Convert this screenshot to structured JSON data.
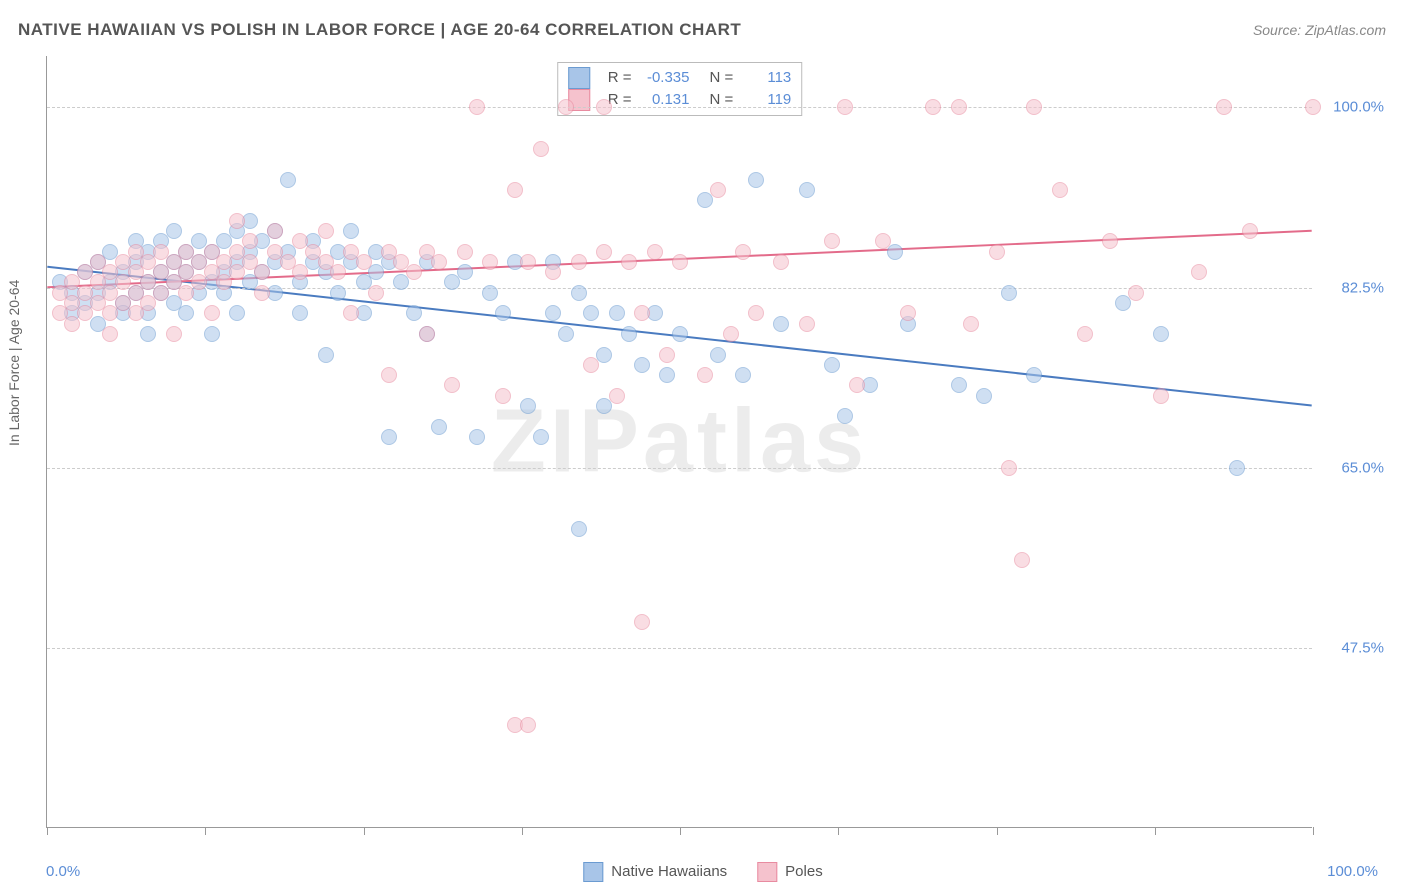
{
  "title": "NATIVE HAWAIIAN VS POLISH IN LABOR FORCE | AGE 20-64 CORRELATION CHART",
  "source": {
    "label": "Source:",
    "value": "ZipAtlas.com"
  },
  "ylabel": "In Labor Force | Age 20-64",
  "watermark": "ZIPatlas",
  "chart": {
    "type": "scatter",
    "background_color": "#ffffff",
    "grid_color": "#cccccc",
    "axis_color": "#999999",
    "label_color": "#666666",
    "tick_label_color": "#5b8dd6",
    "title_fontsize": 17,
    "label_fontsize": 14,
    "tick_fontsize": 15,
    "point_radius": 8,
    "point_opacity": 0.55,
    "line_width": 2,
    "xlim": [
      0,
      100
    ],
    "ylim": [
      30,
      105
    ],
    "y_ticks": [
      {
        "value": 47.5,
        "label": "47.5%"
      },
      {
        "value": 65.0,
        "label": "65.0%"
      },
      {
        "value": 82.5,
        "label": "82.5%"
      },
      {
        "value": 100.0,
        "label": "100.0%"
      }
    ],
    "x_tick_positions": [
      0,
      12.5,
      25,
      37.5,
      50,
      62.5,
      75,
      87.5,
      100
    ],
    "x_left_label": "0.0%",
    "x_right_label": "100.0%"
  },
  "series": [
    {
      "name": "Native Hawaiians",
      "fill_color": "#a8c5e8",
      "border_color": "#6b9bd1",
      "line_color": "#4a7bc0",
      "R": "-0.335",
      "N": "113",
      "trend": {
        "x1": 0,
        "y1": 84.5,
        "x2": 100,
        "y2": 71.0
      },
      "points": [
        [
          1,
          83
        ],
        [
          2,
          82
        ],
        [
          2,
          80
        ],
        [
          3,
          84
        ],
        [
          3,
          81
        ],
        [
          4,
          82
        ],
        [
          4,
          85
        ],
        [
          4,
          79
        ],
        [
          5,
          83
        ],
        [
          5,
          86
        ],
        [
          6,
          81
        ],
        [
          6,
          84
        ],
        [
          6,
          80
        ],
        [
          7,
          85
        ],
        [
          7,
          82
        ],
        [
          7,
          87
        ],
        [
          8,
          83
        ],
        [
          8,
          86
        ],
        [
          8,
          80
        ],
        [
          8,
          78
        ],
        [
          9,
          84
        ],
        [
          9,
          82
        ],
        [
          9,
          87
        ],
        [
          10,
          85
        ],
        [
          10,
          83
        ],
        [
          10,
          81
        ],
        [
          10,
          88
        ],
        [
          11,
          84
        ],
        [
          11,
          86
        ],
        [
          11,
          80
        ],
        [
          12,
          85
        ],
        [
          12,
          82
        ],
        [
          12,
          87
        ],
        [
          13,
          83
        ],
        [
          13,
          86
        ],
        [
          13,
          78
        ],
        [
          14,
          84
        ],
        [
          14,
          87
        ],
        [
          14,
          82
        ],
        [
          15,
          85
        ],
        [
          15,
          88
        ],
        [
          15,
          80
        ],
        [
          16,
          86
        ],
        [
          16,
          83
        ],
        [
          16,
          89
        ],
        [
          17,
          84
        ],
        [
          17,
          87
        ],
        [
          18,
          85
        ],
        [
          18,
          82
        ],
        [
          18,
          88
        ],
        [
          19,
          93
        ],
        [
          19,
          86
        ],
        [
          20,
          83
        ],
        [
          20,
          80
        ],
        [
          21,
          85
        ],
        [
          21,
          87
        ],
        [
          22,
          84
        ],
        [
          22,
          76
        ],
        [
          23,
          86
        ],
        [
          23,
          82
        ],
        [
          24,
          85
        ],
        [
          24,
          88
        ],
        [
          25,
          83
        ],
        [
          25,
          80
        ],
        [
          26,
          86
        ],
        [
          26,
          84
        ],
        [
          27,
          85
        ],
        [
          27,
          68
        ],
        [
          28,
          83
        ],
        [
          29,
          80
        ],
        [
          30,
          85
        ],
        [
          30,
          78
        ],
        [
          31,
          69
        ],
        [
          32,
          83
        ],
        [
          33,
          84
        ],
        [
          34,
          68
        ],
        [
          35,
          82
        ],
        [
          36,
          80
        ],
        [
          37,
          85
        ],
        [
          38,
          71
        ],
        [
          39,
          68
        ],
        [
          40,
          85
        ],
        [
          40,
          80
        ],
        [
          41,
          78
        ],
        [
          42,
          82
        ],
        [
          42,
          59
        ],
        [
          43,
          80
        ],
        [
          44,
          76
        ],
        [
          44,
          71
        ],
        [
          45,
          80
        ],
        [
          46,
          78
        ],
        [
          47,
          75
        ],
        [
          48,
          80
        ],
        [
          49,
          74
        ],
        [
          50,
          78
        ],
        [
          52,
          91
        ],
        [
          53,
          76
        ],
        [
          55,
          74
        ],
        [
          56,
          93
        ],
        [
          58,
          79
        ],
        [
          60,
          92
        ],
        [
          62,
          75
        ],
        [
          63,
          70
        ],
        [
          65,
          73
        ],
        [
          67,
          86
        ],
        [
          68,
          79
        ],
        [
          72,
          73
        ],
        [
          74,
          72
        ],
        [
          76,
          82
        ],
        [
          78,
          74
        ],
        [
          85,
          81
        ],
        [
          88,
          78
        ],
        [
          94,
          65
        ]
      ]
    },
    {
      "name": "Poles",
      "fill_color": "#f5c2cd",
      "border_color": "#e88ba0",
      "line_color": "#e36b8a",
      "R": "0.131",
      "N": "119",
      "trend": {
        "x1": 0,
        "y1": 82.5,
        "x2": 100,
        "y2": 88.0
      },
      "points": [
        [
          1,
          82
        ],
        [
          1,
          80
        ],
        [
          2,
          81
        ],
        [
          2,
          83
        ],
        [
          2,
          79
        ],
        [
          3,
          82
        ],
        [
          3,
          84
        ],
        [
          3,
          80
        ],
        [
          4,
          83
        ],
        [
          4,
          81
        ],
        [
          4,
          85
        ],
        [
          5,
          82
        ],
        [
          5,
          84
        ],
        [
          5,
          80
        ],
        [
          5,
          78
        ],
        [
          6,
          83
        ],
        [
          6,
          85
        ],
        [
          6,
          81
        ],
        [
          7,
          84
        ],
        [
          7,
          82
        ],
        [
          7,
          86
        ],
        [
          7,
          80
        ],
        [
          8,
          83
        ],
        [
          8,
          85
        ],
        [
          8,
          81
        ],
        [
          9,
          84
        ],
        [
          9,
          82
        ],
        [
          9,
          86
        ],
        [
          10,
          83
        ],
        [
          10,
          85
        ],
        [
          10,
          78
        ],
        [
          11,
          84
        ],
        [
          11,
          82
        ],
        [
          11,
          86
        ],
        [
          12,
          85
        ],
        [
          12,
          83
        ],
        [
          13,
          84
        ],
        [
          13,
          86
        ],
        [
          13,
          80
        ],
        [
          14,
          85
        ],
        [
          14,
          83
        ],
        [
          15,
          86
        ],
        [
          15,
          84
        ],
        [
          15,
          89
        ],
        [
          16,
          85
        ],
        [
          16,
          87
        ],
        [
          17,
          84
        ],
        [
          17,
          82
        ],
        [
          18,
          86
        ],
        [
          18,
          88
        ],
        [
          19,
          85
        ],
        [
          20,
          87
        ],
        [
          20,
          84
        ],
        [
          21,
          86
        ],
        [
          22,
          85
        ],
        [
          22,
          88
        ],
        [
          23,
          84
        ],
        [
          24,
          86
        ],
        [
          24,
          80
        ],
        [
          25,
          85
        ],
        [
          26,
          82
        ],
        [
          27,
          86
        ],
        [
          27,
          74
        ],
        [
          28,
          85
        ],
        [
          29,
          84
        ],
        [
          30,
          86
        ],
        [
          30,
          78
        ],
        [
          31,
          85
        ],
        [
          32,
          73
        ],
        [
          33,
          86
        ],
        [
          34,
          100
        ],
        [
          35,
          85
        ],
        [
          36,
          72
        ],
        [
          37,
          92
        ],
        [
          37,
          40
        ],
        [
          38,
          85
        ],
        [
          38,
          40
        ],
        [
          39,
          96
        ],
        [
          40,
          84
        ],
        [
          41,
          100
        ],
        [
          42,
          85
        ],
        [
          43,
          75
        ],
        [
          44,
          86
        ],
        [
          44,
          100
        ],
        [
          45,
          72
        ],
        [
          46,
          85
        ],
        [
          47,
          80
        ],
        [
          47,
          50
        ],
        [
          48,
          86
        ],
        [
          49,
          76
        ],
        [
          50,
          85
        ],
        [
          52,
          74
        ],
        [
          53,
          92
        ],
        [
          54,
          78
        ],
        [
          55,
          86
        ],
        [
          56,
          80
        ],
        [
          58,
          85
        ],
        [
          60,
          79
        ],
        [
          62,
          87
        ],
        [
          63,
          100
        ],
        [
          64,
          73
        ],
        [
          66,
          87
        ],
        [
          68,
          80
        ],
        [
          70,
          100
        ],
        [
          72,
          100
        ],
        [
          73,
          79
        ],
        [
          75,
          86
        ],
        [
          76,
          65
        ],
        [
          77,
          56
        ],
        [
          78,
          100
        ],
        [
          80,
          92
        ],
        [
          82,
          78
        ],
        [
          84,
          87
        ],
        [
          86,
          82
        ],
        [
          88,
          72
        ],
        [
          91,
          84
        ],
        [
          93,
          100
        ],
        [
          95,
          88
        ],
        [
          100,
          100
        ]
      ]
    }
  ],
  "legend": {
    "R_label": "R =",
    "N_label": "N ="
  }
}
